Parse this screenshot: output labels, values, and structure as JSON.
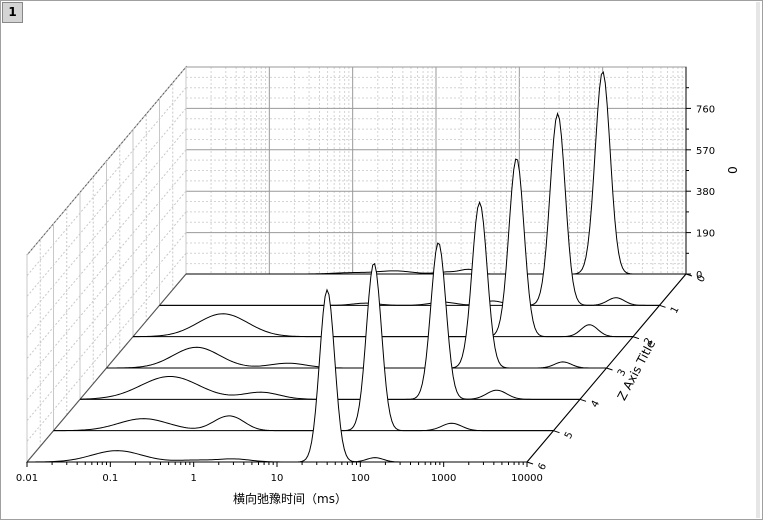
{
  "layer": {
    "number": "1"
  },
  "chart_data": {
    "type": "area",
    "subtype": "3d-waterfall",
    "x_axis": {
      "title": "横向弛豫时间（ms）",
      "scale": "log",
      "range": [
        0.01,
        10000
      ],
      "tick_labels": [
        "0.01",
        "0.1",
        "1",
        "10",
        "100",
        "1000",
        "10000"
      ]
    },
    "y_axis": {
      "title": "Z Axis Title",
      "range": [
        0,
        6
      ],
      "tick_labels": [
        "0",
        "1",
        "2",
        "3",
        "4",
        "5",
        "6"
      ]
    },
    "z_axis": {
      "title": "0",
      "range": [
        0,
        950
      ],
      "tick_labels": [
        "0",
        "190",
        "380",
        "570",
        "760"
      ]
    },
    "grid": true,
    "series": [
      {
        "z": 0,
        "peaks": [
          {
            "center": 1.0,
            "width": 0.22,
            "amp": 6
          },
          {
            "center": 25,
            "width": 0.09,
            "amp": 18
          },
          {
            "center": 1000,
            "width": 0.09,
            "amp": 930
          },
          {
            "center": 3.2,
            "width": 0.2,
            "amp": 14
          },
          {
            "center": 15,
            "width": 0.15,
            "amp": 10
          }
        ]
      },
      {
        "z": 1,
        "peaks": [
          {
            "center": 3,
            "width": 0.15,
            "amp": 10
          },
          {
            "center": 25,
            "width": 0.15,
            "amp": 15
          },
          {
            "center": 100,
            "width": 0.12,
            "amp": 20
          },
          {
            "center": 600,
            "width": 0.09,
            "amp": 880
          },
          {
            "center": 3000,
            "width": 0.1,
            "amp": 35
          }
        ]
      },
      {
        "z": 2,
        "peaks": [
          {
            "center": 0.12,
            "width": 0.3,
            "amp": 105
          },
          {
            "center": 400,
            "width": 0.09,
            "amp": 820
          },
          {
            "center": 3000,
            "width": 0.1,
            "amp": 55
          }
        ]
      },
      {
        "z": 3,
        "peaks": [
          {
            "center": 0.12,
            "width": 0.28,
            "amp": 95
          },
          {
            "center": 1.5,
            "width": 0.22,
            "amp": 22
          },
          {
            "center": 300,
            "width": 0.09,
            "amp": 760
          },
          {
            "center": 3000,
            "width": 0.1,
            "amp": 28
          }
        ]
      },
      {
        "z": 4,
        "peaks": [
          {
            "center": 0.12,
            "width": 0.35,
            "amp": 105
          },
          {
            "center": 1.5,
            "width": 0.22,
            "amp": 32
          },
          {
            "center": 200,
            "width": 0.09,
            "amp": 720
          },
          {
            "center": 1000,
            "width": 0.12,
            "amp": 42
          }
        ]
      },
      {
        "z": 5,
        "peaks": [
          {
            "center": 0.12,
            "width": 0.3,
            "amp": 55
          },
          {
            "center": 1.0,
            "width": 0.15,
            "amp": 34
          },
          {
            "center": 1.5,
            "width": 0.15,
            "amp": 46
          },
          {
            "center": 70,
            "width": 0.09,
            "amp": 770
          },
          {
            "center": 600,
            "width": 0.12,
            "amp": 34
          }
        ]
      },
      {
        "z": 6,
        "peaks": [
          {
            "center": 0.12,
            "width": 0.3,
            "amp": 52
          },
          {
            "center": 1.0,
            "width": 0.2,
            "amp": 8
          },
          {
            "center": 3,
            "width": 0.2,
            "amp": 14
          },
          {
            "center": 40,
            "width": 0.09,
            "amp": 790
          },
          {
            "center": 150,
            "width": 0.1,
            "amp": 20
          }
        ]
      }
    ]
  }
}
